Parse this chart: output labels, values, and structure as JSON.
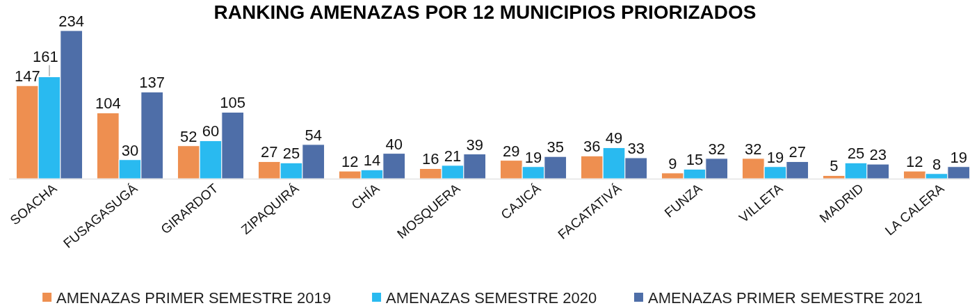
{
  "chart_data": {
    "type": "bar",
    "title": "RANKING AMENAZAS POR 12 MUNICIPIOS PRIORIZADOS",
    "categories": [
      "SOACHA",
      "FUSAGASUGÁ",
      "GIRARDOT",
      "ZIPAQUIRÁ",
      "CHÍA",
      "MOSQUERA",
      "CAJICÁ",
      "FACATATIVÁ",
      "FUNZA",
      "VILLETA",
      "MADRID",
      "LA CALERA"
    ],
    "series": [
      {
        "name": "AMENAZAS PRIMER SEMESTRE 2019",
        "color": "#ee8f50",
        "values": [
          147,
          104,
          52,
          27,
          12,
          16,
          29,
          36,
          9,
          32,
          5,
          12
        ]
      },
      {
        "name": "AMENAZAS SEMESTRE 2020",
        "color": "#29baf0",
        "values": [
          161,
          30,
          60,
          25,
          14,
          21,
          19,
          49,
          15,
          19,
          25,
          8
        ]
      },
      {
        "name": "AMENAZAS PRIMER SEMESTRE 2021",
        "color": "#4e6ea8",
        "values": [
          234,
          137,
          105,
          54,
          40,
          39,
          35,
          33,
          32,
          27,
          23,
          19
        ]
      }
    ],
    "data_labels": true,
    "legend": "bottom"
  }
}
